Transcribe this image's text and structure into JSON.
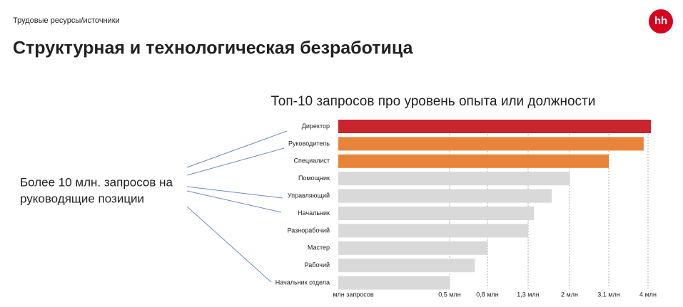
{
  "header": {
    "section": "Трудовые ресурсы/источники",
    "title": "Структурная и технологическая безработица",
    "logo": "hh"
  },
  "note": [
    "Более 10 млн. запросов на",
    "руководящие позиции"
  ],
  "chart_data": {
    "type": "bar",
    "orientation": "horizontal",
    "title": "Топ-10 запросов про уровень опыта или должности",
    "x_label": "млн запросов",
    "categories": [
      "Директор",
      "Руководитель",
      "Специалист",
      "Помощник",
      "Управляющий",
      "Начальник",
      "Разнорабочий",
      "Мастер",
      "Рабочий",
      "Начальник отдела"
    ],
    "values": [
      4.1,
      3.9,
      3.1,
      2.0,
      1.7,
      1.4,
      1.3,
      0.8,
      0.7,
      0.5
    ],
    "colors": [
      "#c8252c",
      "#e8833a",
      "#e8833a",
      "#d9d9d9",
      "#d9d9d9",
      "#d9d9d9",
      "#d9d9d9",
      "#d9d9d9",
      "#d9d9d9",
      "#d9d9d9"
    ],
    "xlim": [
      0,
      4.1
    ],
    "xticks": [
      {
        "value": 0.5,
        "label": "0,5 млн"
      },
      {
        "value": 0.8,
        "label": "0,8 млн"
      },
      {
        "value": 1.3,
        "label": "1,3 млн"
      },
      {
        "value": 2,
        "label": "2 млн"
      },
      {
        "value": 3.1,
        "label": "3,1 млн"
      },
      {
        "value": 4,
        "label": "4 млн"
      }
    ],
    "grid": true
  }
}
